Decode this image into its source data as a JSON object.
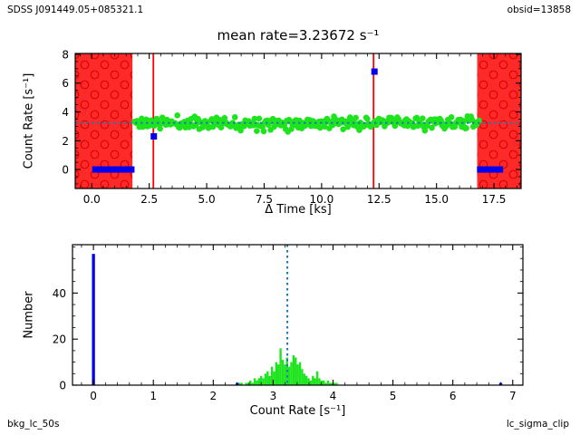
{
  "header": {
    "source": "SDSS J091449.05+085321.1",
    "obsid": "obsid=13858"
  },
  "footer": {
    "left": "bkg_lc_50s",
    "right": "lc_sigma_clip"
  },
  "colors": {
    "bad_region": "#fd2a2a",
    "bad_region_hatch": "#e00000",
    "data_green": "#1ee41e",
    "marker_blue": "#0000ee",
    "mean_line_blue": "#1f77b4",
    "vline_red": "#ff0000",
    "spine_black": "#000000"
  },
  "chart_data": [
    {
      "type": "scatter",
      "title": "mean rate=3.23672 s⁻¹",
      "xlabel": "Δ Time [ks]",
      "ylabel": "Count Rate [s⁻¹]",
      "xlim": [
        -0.72,
        18.68
      ],
      "ylim": [
        -1.32,
        8.06
      ],
      "xticks": {
        "values": [
          0.0,
          2.5,
          5.0,
          7.5,
          10.0,
          12.5,
          15.0,
          17.5
        ],
        "labels": [
          "0.0",
          "2.5",
          "5.0",
          "7.5",
          "10.0",
          "12.5",
          "15.0",
          "17.5"
        ]
      },
      "yticks": {
        "values": [
          0,
          2,
          4,
          6,
          8
        ],
        "labels": [
          "0",
          "2",
          "4",
          "6",
          "8"
        ]
      },
      "xminor": 0.5,
      "yminor": 0.5,
      "mean_rate": 3.23672,
      "bad_time_spans": [
        [
          -0.72,
          1.77
        ],
        [
          16.77,
          18.68
        ]
      ],
      "flare_vlines": [
        2.68,
        12.26
      ],
      "zero_rate_bars": [
        [
          0.02,
          1.86
        ],
        [
          16.76,
          17.9
        ]
      ],
      "outliers": [
        [
          2.7,
          2.3
        ],
        [
          12.3,
          6.8
        ]
      ],
      "series_gen": {
        "name": "source light curve 50s bins",
        "t_start": 1.87,
        "t_end": 16.85,
        "n": 300,
        "mean": 3.23672,
        "sigma": 0.21,
        "clip_lo": 2.62,
        "clip_hi": 3.92,
        "seed": 11
      }
    },
    {
      "type": "histogram",
      "xlabel": "Count Rate [s⁻¹]",
      "ylabel": "Number",
      "xlim": [
        -0.35,
        7.17
      ],
      "ylim": [
        0,
        61
      ],
      "xticks": {
        "values": [
          0,
          1,
          2,
          3,
          4,
          5,
          6,
          7
        ],
        "labels": [
          "0",
          "1",
          "2",
          "3",
          "4",
          "5",
          "6",
          "7"
        ]
      },
      "yticks": {
        "values": [
          0,
          20,
          40
        ],
        "labels": [
          "0",
          "20",
          "40"
        ]
      },
      "xminor": 0.2,
      "yminor": 5,
      "mean_line": 3.23672,
      "green_bins": {
        "start": 2.422,
        "binw": 0.036,
        "heights": [
          1,
          1,
          0,
          1,
          1,
          2,
          1,
          3,
          2,
          3,
          4,
          3,
          5,
          6,
          4,
          8,
          6,
          10,
          9,
          16,
          11,
          9,
          12,
          8,
          10,
          13,
          12,
          9,
          10,
          7,
          5,
          4,
          3,
          2,
          4,
          3,
          6,
          3,
          2,
          2,
          1,
          2,
          1,
          1,
          1,
          1
        ]
      },
      "blue_bins": [
        {
          "x": 0.0,
          "h": 57
        },
        {
          "x": 2.4,
          "h": 1
        },
        {
          "x": 6.8,
          "h": 1
        }
      ],
      "blue_bin_width": 0.05
    }
  ]
}
